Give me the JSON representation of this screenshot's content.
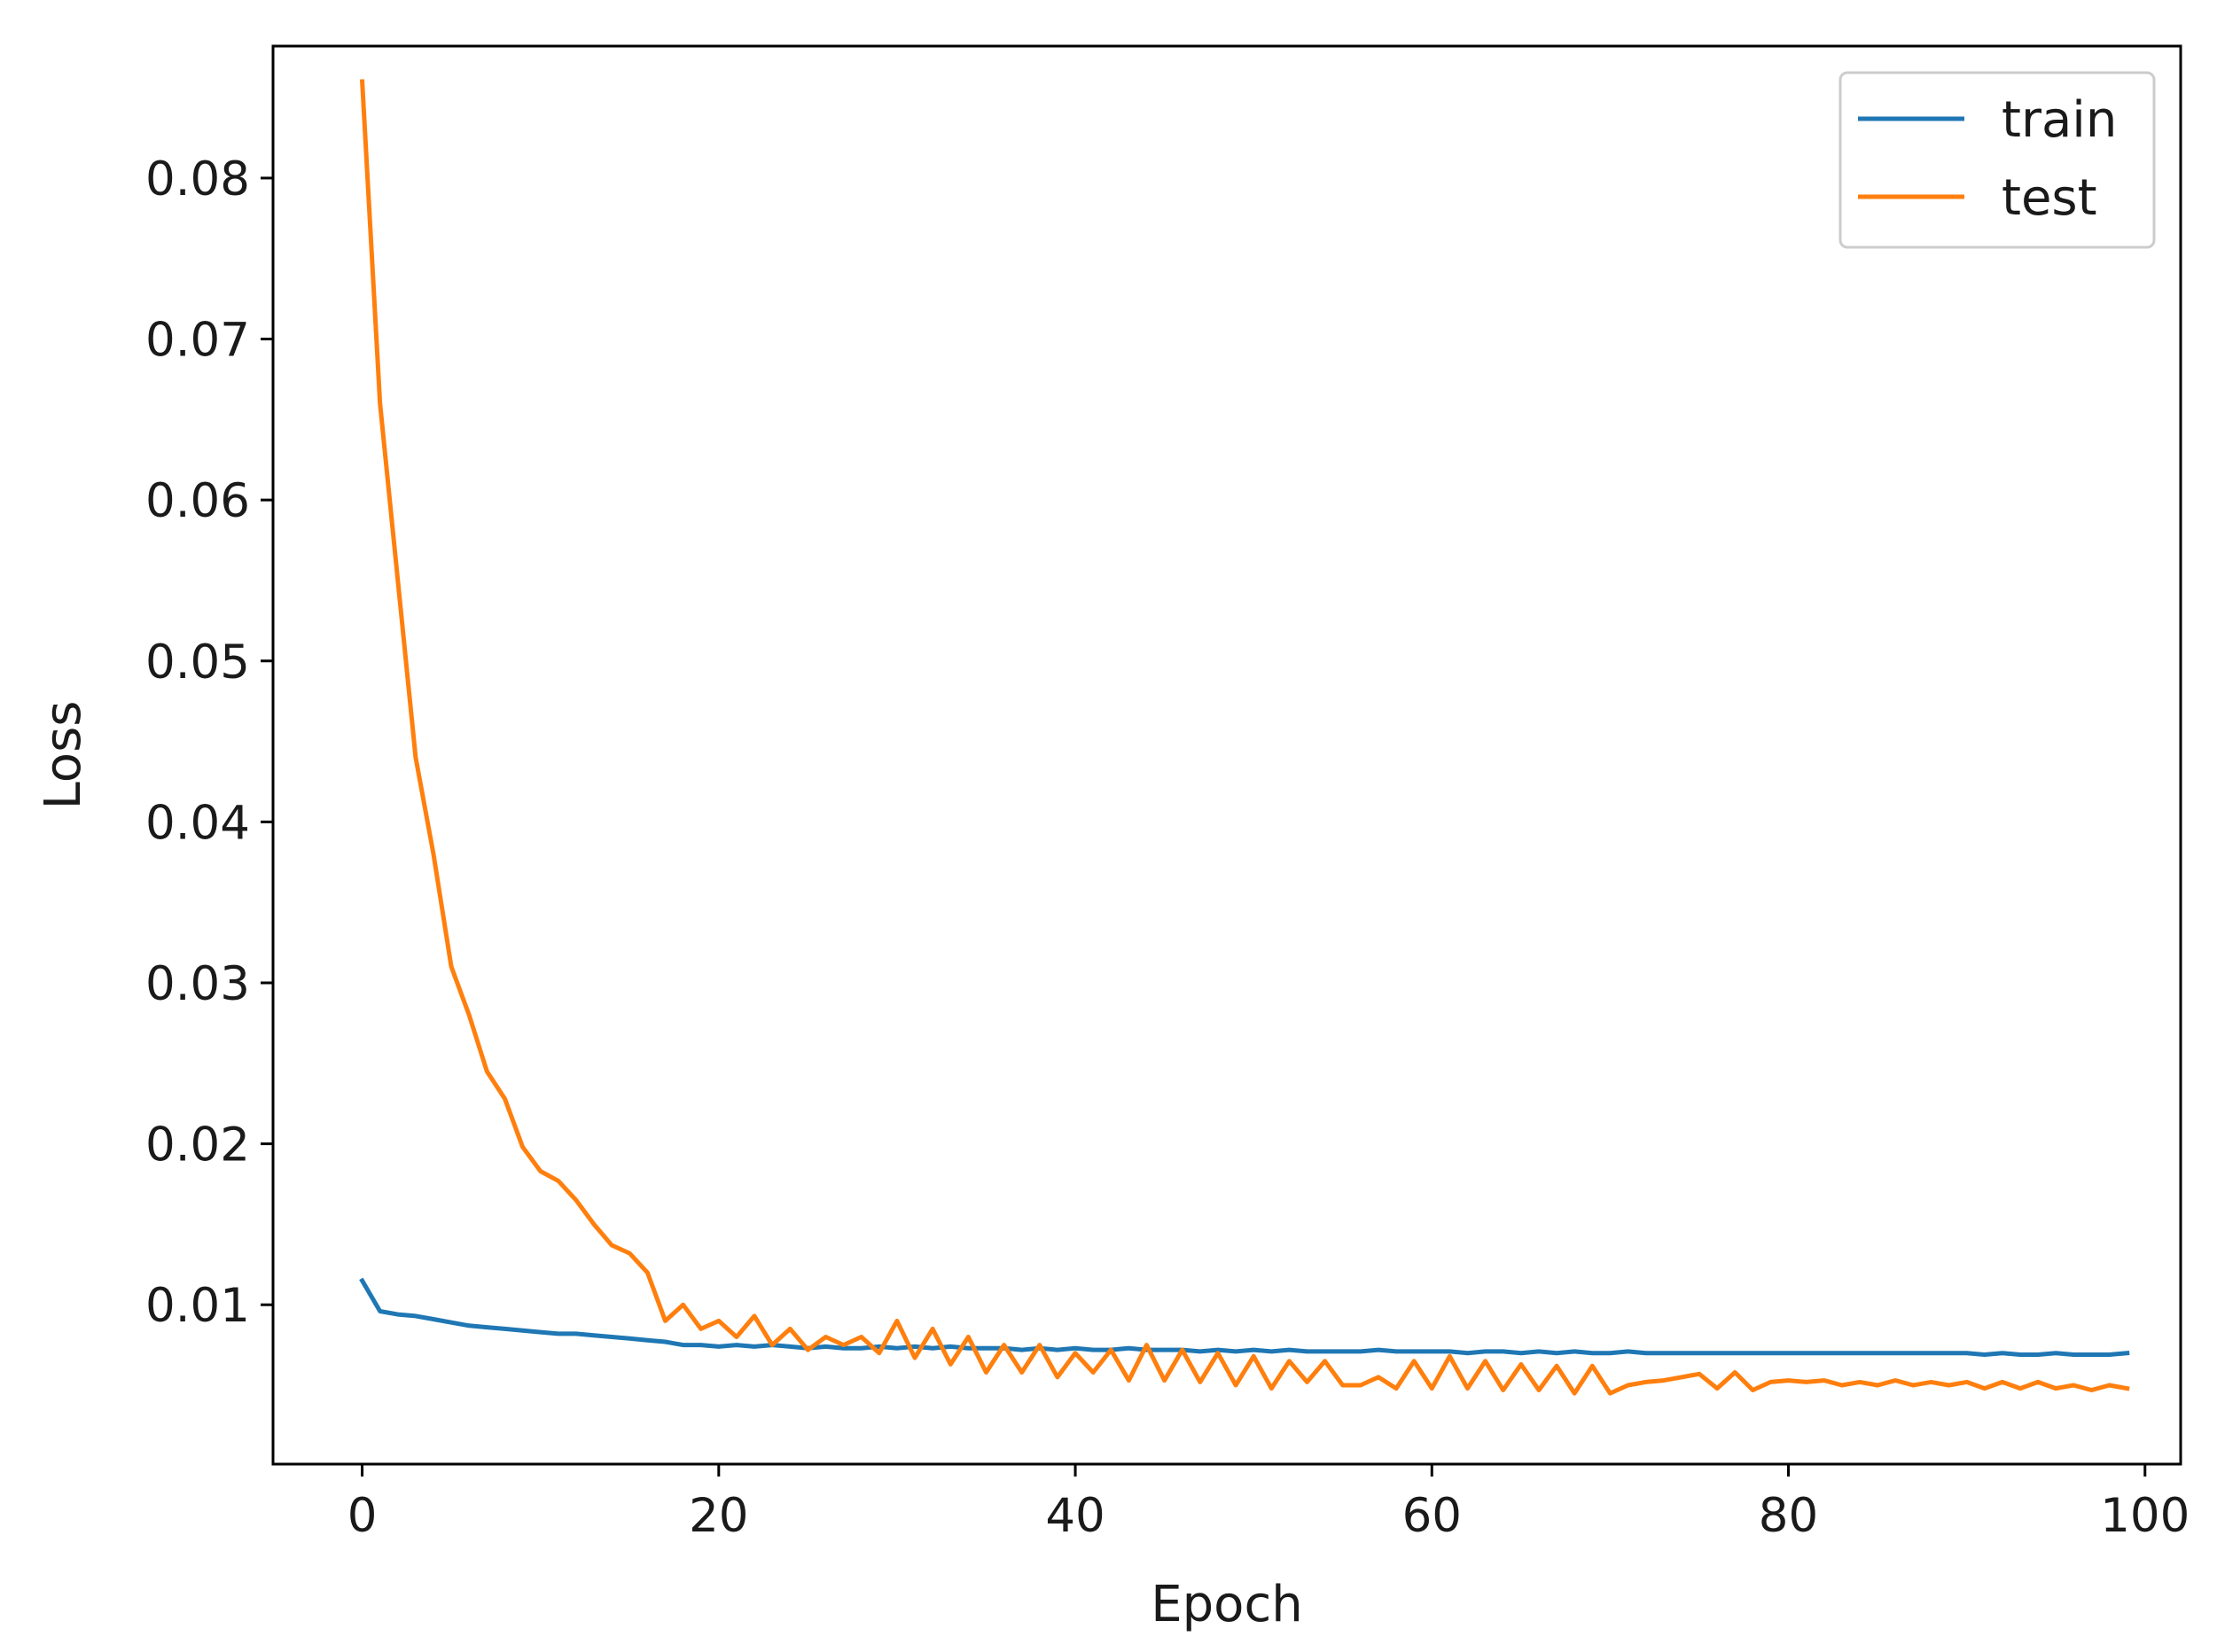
{
  "chart_data": {
    "type": "line",
    "title": "",
    "xlabel": "Epoch",
    "ylabel": "Loss",
    "xlim": [
      -5,
      102
    ],
    "ylim": [
      0.0001,
      0.0882
    ],
    "xticks": [
      0,
      20,
      40,
      60,
      80,
      100
    ],
    "xtick_labels": [
      "0",
      "20",
      "40",
      "60",
      "80",
      "100"
    ],
    "yticks": [
      0.01,
      0.02,
      0.03,
      0.04,
      0.05,
      0.06,
      0.07,
      0.08
    ],
    "ytick_labels": [
      "0.01",
      "0.02",
      "0.03",
      "0.04",
      "0.05",
      "0.06",
      "0.07",
      "0.08"
    ],
    "grid": false,
    "legend_position": "top-right",
    "x": [
      0,
      1,
      2,
      3,
      4,
      5,
      6,
      7,
      8,
      9,
      10,
      11,
      12,
      13,
      14,
      15,
      16,
      17,
      18,
      19,
      20,
      21,
      22,
      23,
      24,
      25,
      26,
      27,
      28,
      29,
      30,
      31,
      32,
      33,
      34,
      35,
      36,
      37,
      38,
      39,
      40,
      41,
      42,
      43,
      44,
      45,
      46,
      47,
      48,
      49,
      50,
      51,
      52,
      53,
      54,
      55,
      56,
      57,
      58,
      59,
      60,
      61,
      62,
      63,
      64,
      65,
      66,
      67,
      68,
      69,
      70,
      71,
      72,
      73,
      74,
      75,
      76,
      77,
      78,
      79,
      80,
      81,
      82,
      83,
      84,
      85,
      86,
      87,
      88,
      89,
      90,
      91,
      92,
      93,
      94,
      95,
      96,
      97,
      98,
      99
    ],
    "series": [
      {
        "name": "train",
        "color": "#1f77b4",
        "values": [
          0.0115,
          0.0096,
          0.0094,
          0.0093,
          0.0091,
          0.0089,
          0.0087,
          0.0086,
          0.0085,
          0.0084,
          0.0083,
          0.0082,
          0.0082,
          0.0081,
          0.008,
          0.0079,
          0.0078,
          0.0077,
          0.0075,
          0.0075,
          0.0074,
          0.0075,
          0.0074,
          0.0075,
          0.0074,
          0.0073,
          0.0074,
          0.0073,
          0.0073,
          0.0074,
          0.0073,
          0.0074,
          0.0073,
          0.0074,
          0.0073,
          0.0073,
          0.0073,
          0.0072,
          0.0073,
          0.0072,
          0.0073,
          0.0072,
          0.0072,
          0.0073,
          0.0072,
          0.0072,
          0.0072,
          0.0071,
          0.0072,
          0.0071,
          0.0072,
          0.0071,
          0.0072,
          0.0071,
          0.0071,
          0.0071,
          0.0071,
          0.0072,
          0.0071,
          0.0071,
          0.0071,
          0.0071,
          0.007,
          0.0071,
          0.0071,
          0.007,
          0.0071,
          0.007,
          0.0071,
          0.007,
          0.007,
          0.0071,
          0.007,
          0.007,
          0.007,
          0.007,
          0.007,
          0.007,
          0.007,
          0.007,
          0.007,
          0.007,
          0.007,
          0.007,
          0.007,
          0.007,
          0.007,
          0.007,
          0.007,
          0.007,
          0.007,
          0.0069,
          0.007,
          0.0069,
          0.0069,
          0.007,
          0.0069,
          0.0069,
          0.0069,
          0.007
        ]
      },
      {
        "name": "test",
        "color": "#ff7f0e",
        "values": [
          0.086,
          0.066,
          0.055,
          0.044,
          0.038,
          0.031,
          0.028,
          0.0245,
          0.0228,
          0.0198,
          0.0183,
          0.0177,
          0.0165,
          0.015,
          0.0137,
          0.0132,
          0.012,
          0.009,
          0.01,
          0.0085,
          0.009,
          0.008,
          0.0093,
          0.0075,
          0.0085,
          0.0072,
          0.008,
          0.0075,
          0.008,
          0.007,
          0.009,
          0.0067,
          0.0085,
          0.0063,
          0.008,
          0.0058,
          0.0075,
          0.0058,
          0.0075,
          0.0055,
          0.007,
          0.0058,
          0.0072,
          0.0053,
          0.0075,
          0.0053,
          0.0072,
          0.0052,
          0.007,
          0.005,
          0.0068,
          0.0048,
          0.0065,
          0.0052,
          0.0065,
          0.005,
          0.005,
          0.0055,
          0.0048,
          0.0065,
          0.0048,
          0.0068,
          0.0048,
          0.0065,
          0.0047,
          0.0063,
          0.0047,
          0.0062,
          0.0045,
          0.0062,
          0.0045,
          0.005,
          0.0052,
          0.0053,
          0.0055,
          0.0057,
          0.0048,
          0.0058,
          0.0047,
          0.0052,
          0.0053,
          0.0052,
          0.0053,
          0.005,
          0.0052,
          0.005,
          0.0053,
          0.005,
          0.0052,
          0.005,
          0.0052,
          0.0048,
          0.0052,
          0.0048,
          0.0052,
          0.0048,
          0.005,
          0.0047,
          0.005,
          0.0048
        ]
      }
    ]
  }
}
